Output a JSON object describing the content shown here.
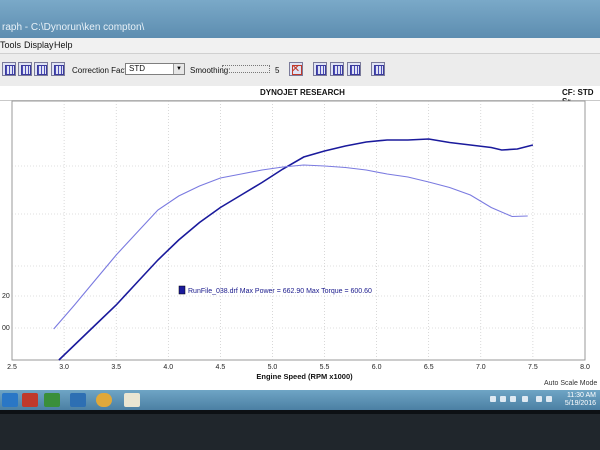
{
  "window": {
    "title": "raph - C:\\Dynorun\\ken compton\\"
  },
  "menu": [
    {
      "label": "Tools"
    },
    {
      "label": "Display"
    },
    {
      "label": "Help"
    }
  ],
  "toolbar": {
    "correction_label": "Correction Factor:",
    "correction_value": "STD",
    "smoothing_label": "Smoothing:",
    "smoothing_value": "5",
    "icons": [
      "graph-icon",
      "graph-icon",
      "graph-icon",
      "graph-icon",
      "graph-icon",
      "graph-icon",
      "delete-run-icon",
      "graph-icon",
      "graph-icon",
      "graph-icon",
      "graph-icon"
    ]
  },
  "header": {
    "title": "DYNOJET RESEARCH",
    "cf": "CF: STD  Sr"
  },
  "statusbar": {
    "mode": "Auto Scale Mode"
  },
  "taskbar": {
    "time": "11:30 AM",
    "date": "5/19/2016"
  },
  "chart_data": {
    "type": "line",
    "title": "DYNOJET RESEARCH",
    "xlabel": "Engine Speed (RPM x1000)",
    "ylabel": "",
    "xlim": [
      2.5,
      8.0
    ],
    "x_ticks": [
      "2.5",
      "3.0",
      "3.5",
      "4.0",
      "4.5",
      "5.0",
      "5.5",
      "6.0",
      "6.5",
      "7.0",
      "7.5",
      "8.0"
    ],
    "y_tick_labels": [
      "20",
      "00"
    ],
    "grid": true,
    "annotation": {
      "run": "RunFile_038.drf",
      "max_power_label": "Max Power =",
      "max_power": "662.90",
      "max_torque_label": "Max Torque =",
      "max_torque": "600.60"
    },
    "series": [
      {
        "color": "#1a1a9c",
        "x": [
          2.95,
          3.1,
          3.3,
          3.5,
          3.7,
          3.9,
          4.1,
          4.3,
          4.5,
          4.7,
          4.9,
          5.1,
          5.3,
          5.5,
          5.7,
          5.9,
          6.1,
          6.3,
          6.5,
          6.7,
          6.9,
          7.1,
          7.2,
          7.35,
          7.5
        ],
        "y": [
          300,
          330,
          370,
          410,
          455,
          500,
          540,
          575,
          605,
          630,
          655,
          682,
          706,
          718,
          728,
          736,
          740,
          740,
          742,
          735,
          730,
          725,
          720,
          722,
          730
        ]
      },
      {
        "color": "#7a7ae0",
        "x": [
          2.9,
          3.1,
          3.3,
          3.5,
          3.7,
          3.9,
          4.1,
          4.3,
          4.5,
          4.7,
          4.9,
          5.1,
          5.3,
          5.5,
          5.7,
          5.9,
          6.1,
          6.3,
          6.5,
          6.7,
          6.9,
          7.1,
          7.3,
          7.45
        ],
        "y": [
          362,
          410,
          460,
          510,
          555,
          600,
          628,
          648,
          664,
          672,
          680,
          686,
          690,
          688,
          685,
          680,
          672,
          666,
          656,
          645,
          630,
          605,
          587,
          588
        ]
      }
    ]
  }
}
